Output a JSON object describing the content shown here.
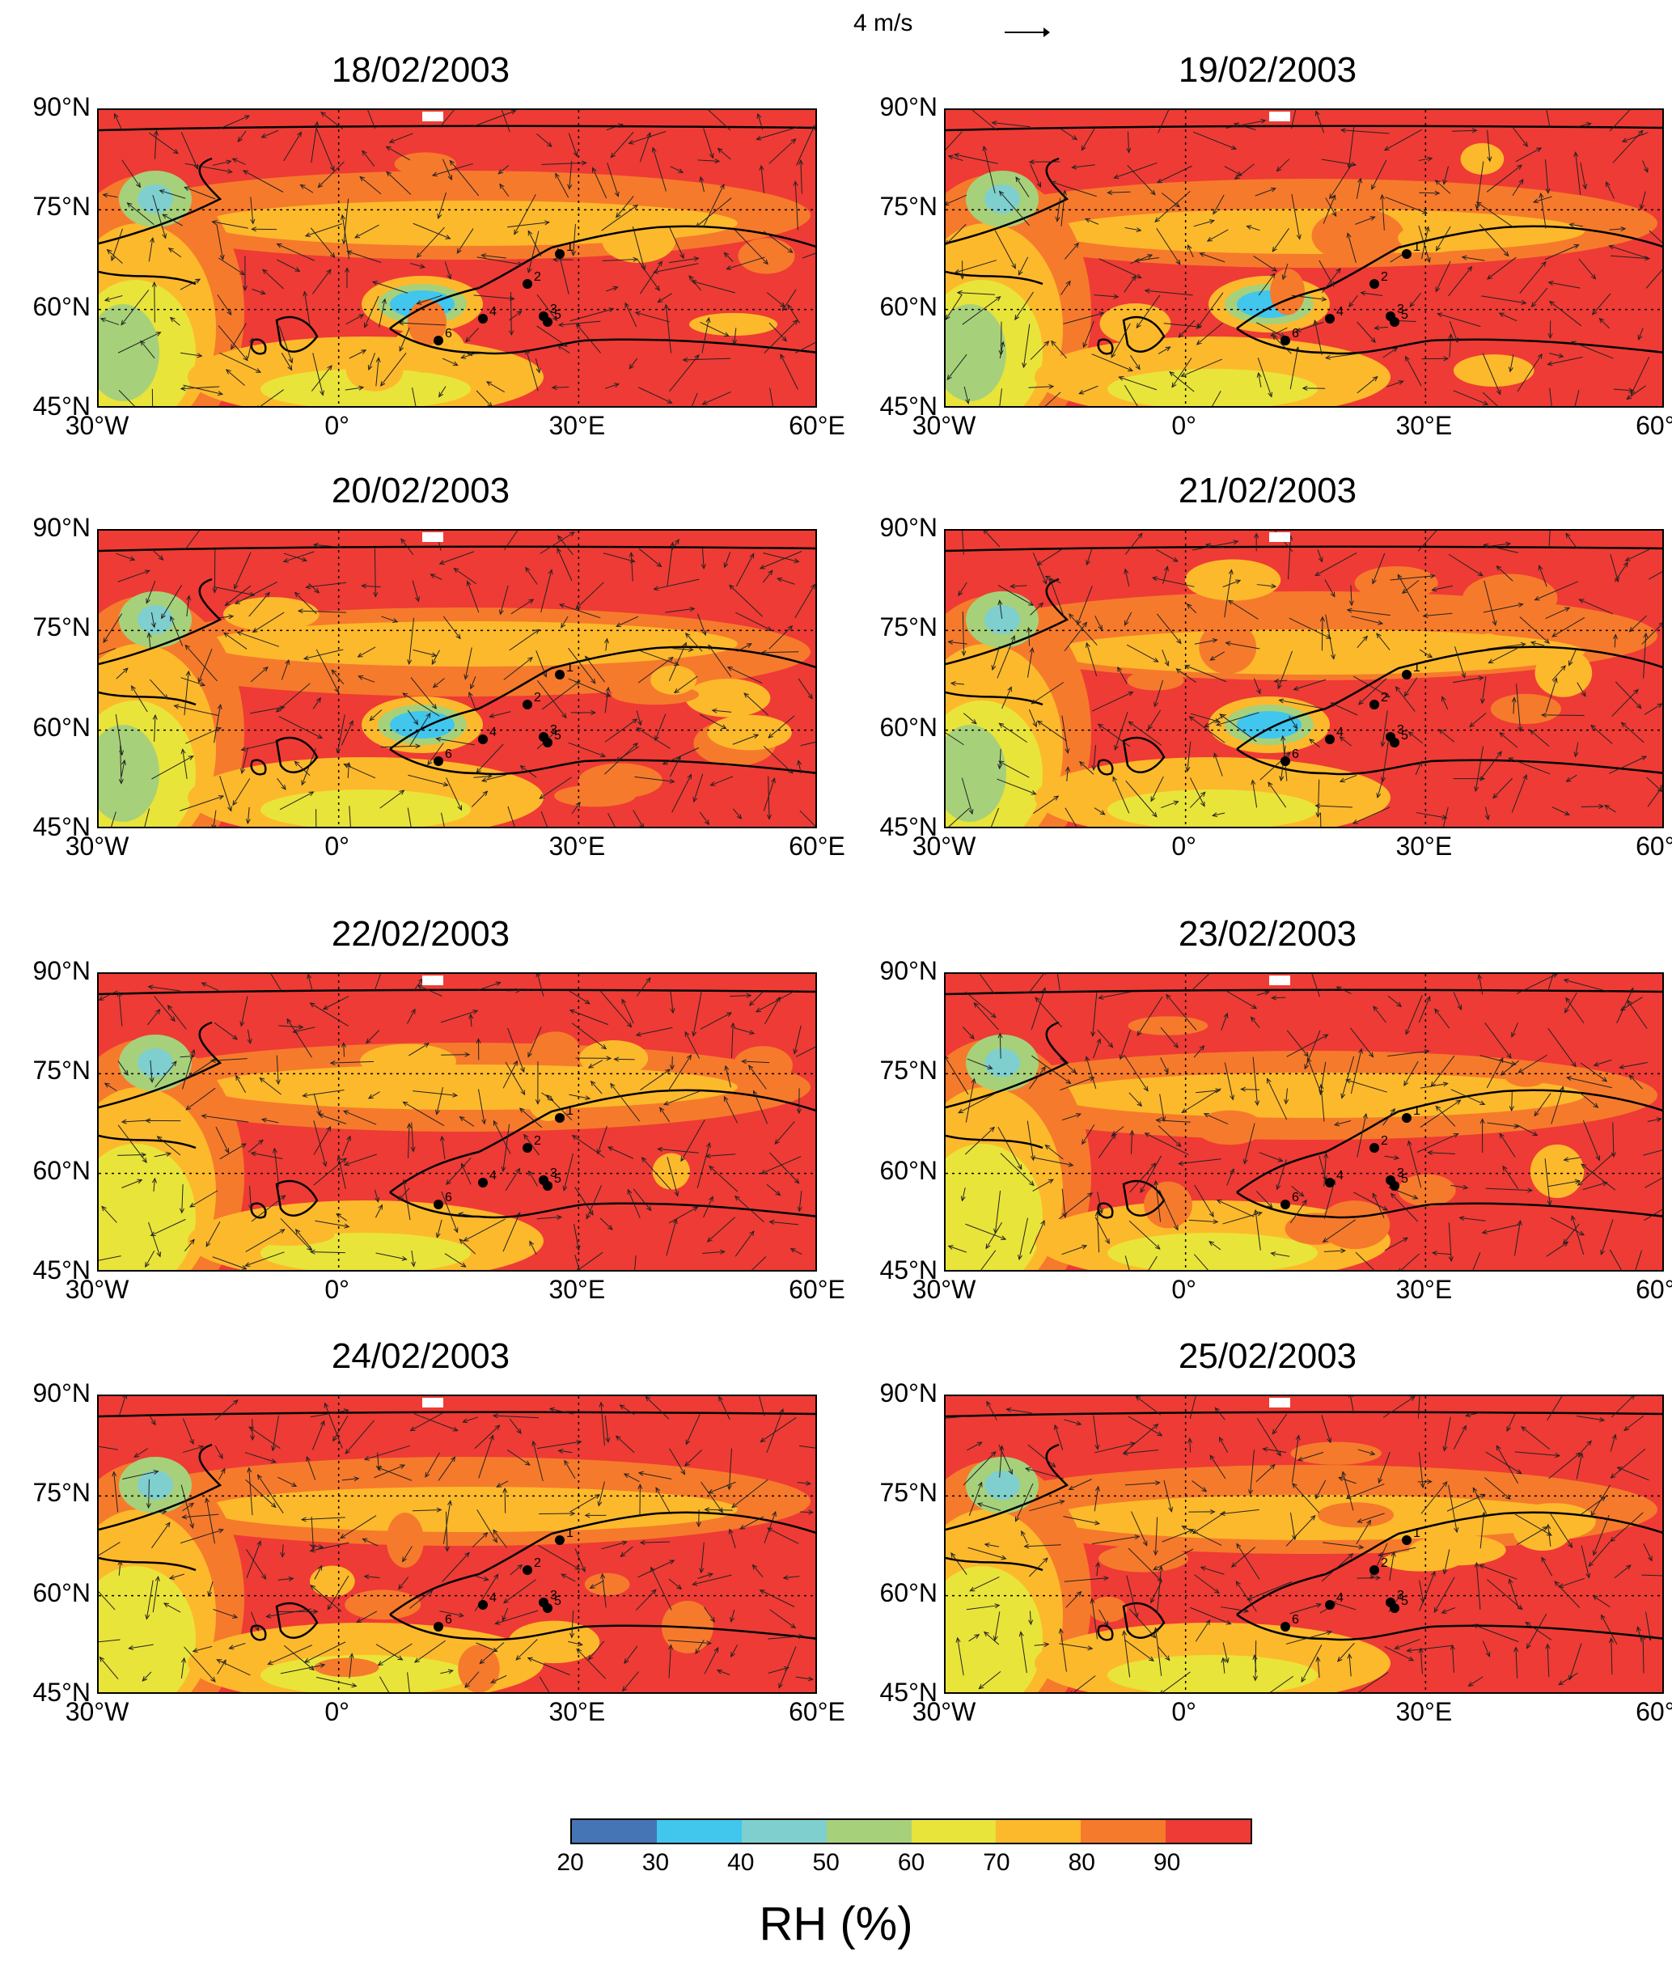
{
  "scale": {
    "label": "4 m/s"
  },
  "panels": [
    {
      "date": "18/02/2003"
    },
    {
      "date": "19/02/2003"
    },
    {
      "date": "20/02/2003"
    },
    {
      "date": "21/02/2003"
    },
    {
      "date": "22/02/2003"
    },
    {
      "date": "23/02/2003"
    },
    {
      "date": "24/02/2003"
    },
    {
      "date": "25/02/2003"
    }
  ],
  "axes": {
    "lat_ticks": [
      "90°N",
      "75°N",
      "60°N",
      "45°N"
    ],
    "lon_ticks": [
      "30°W",
      "0°",
      "30°E",
      "60°E"
    ]
  },
  "stations": [
    "1",
    "2",
    "3",
    "4",
    "5",
    "6"
  ],
  "colorbar": {
    "label": "RH (%)",
    "ticks": [
      "20",
      "30",
      "40",
      "50",
      "60",
      "70",
      "80",
      "90"
    ],
    "colors": [
      "#4575b4",
      "#41c6ee",
      "#7fcfcf",
      "#a6d17a",
      "#e9e43a",
      "#fdb92c",
      "#f67a2c",
      "#ee3b35"
    ]
  }
}
